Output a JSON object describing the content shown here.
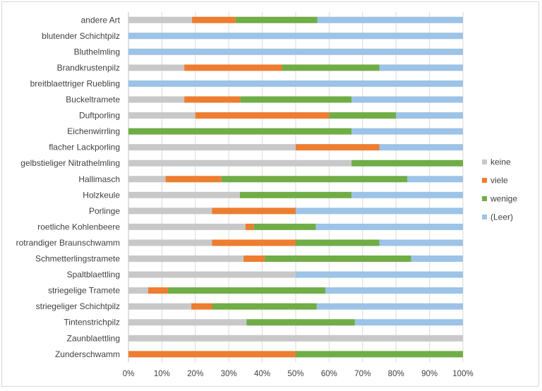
{
  "chart_data": {
    "type": "bar",
    "orientation": "horizontal",
    "stacked": "percent",
    "title": "",
    "xlabel": "",
    "ylabel": "",
    "xlim": [
      0,
      100
    ],
    "x_ticks": [
      "0%",
      "10%",
      "20%",
      "30%",
      "40%",
      "50%",
      "60%",
      "70%",
      "80%",
      "90%",
      "100%"
    ],
    "grid": "vertical",
    "legend_position": "right",
    "categories": [
      "andere Art",
      "blutender Schichtpilz",
      "Bluthelmling",
      "Brandkrustenpilz",
      "breitblaettriger Ruebling",
      "Buckeltramete",
      "Duftporling",
      "Eichenwirrling",
      "flacher Lackporling",
      "gelbstieliger Nitrathelmling",
      "Hallimasch",
      "Holzkeule",
      "Porlinge",
      "roetliche Kohlenbeere",
      "rotrandiger Braunschwamm",
      "Schmetterlingstramete",
      "Spaltblaettling",
      "striegelige Tramete",
      "striegeliger Schichtpilz",
      "Tintenstrichpilz",
      "Zaunblaettling",
      "Zunderschwamm"
    ],
    "series": [
      {
        "name": "keine",
        "color": "#c8c8c8",
        "values": [
          19,
          0,
          0,
          16.7,
          0,
          16.7,
          20,
          0,
          50,
          66.7,
          11.1,
          33.3,
          25,
          35,
          25,
          34.4,
          50,
          5.9,
          18.8,
          35.3,
          100,
          0
        ]
      },
      {
        "name": "viele",
        "color": "#ed7d31",
        "values": [
          13,
          0,
          0,
          29.2,
          0,
          16.7,
          40,
          0,
          25,
          0,
          16.7,
          0,
          25,
          2.5,
          25,
          6.3,
          0,
          5.9,
          6.2,
          0,
          0,
          50
        ]
      },
      {
        "name": "wenige",
        "color": "#70ad47",
        "values": [
          24.5,
          0,
          0,
          29.1,
          0,
          33.3,
          20,
          66.7,
          0,
          33.3,
          55.6,
          33.4,
          0,
          18.5,
          25,
          43.8,
          0,
          47.1,
          31.3,
          32.4,
          0,
          50
        ]
      },
      {
        "name": "(Leer)",
        "color": "#9dc3e6",
        "values": [
          43.5,
          100,
          100,
          25,
          100,
          33.3,
          20,
          33.3,
          25,
          0,
          16.6,
          33.3,
          50,
          44,
          25,
          15.5,
          50,
          41.1,
          43.7,
          32.3,
          0,
          0
        ]
      }
    ],
    "legend_order": [
      "keine",
      "viele",
      "wenige",
      "(Leer)"
    ],
    "colors": {
      "gridline": "#d9d9d9",
      "axis": "#bfbfbf",
      "text": "#404040",
      "border": "#d9d9d9"
    }
  }
}
